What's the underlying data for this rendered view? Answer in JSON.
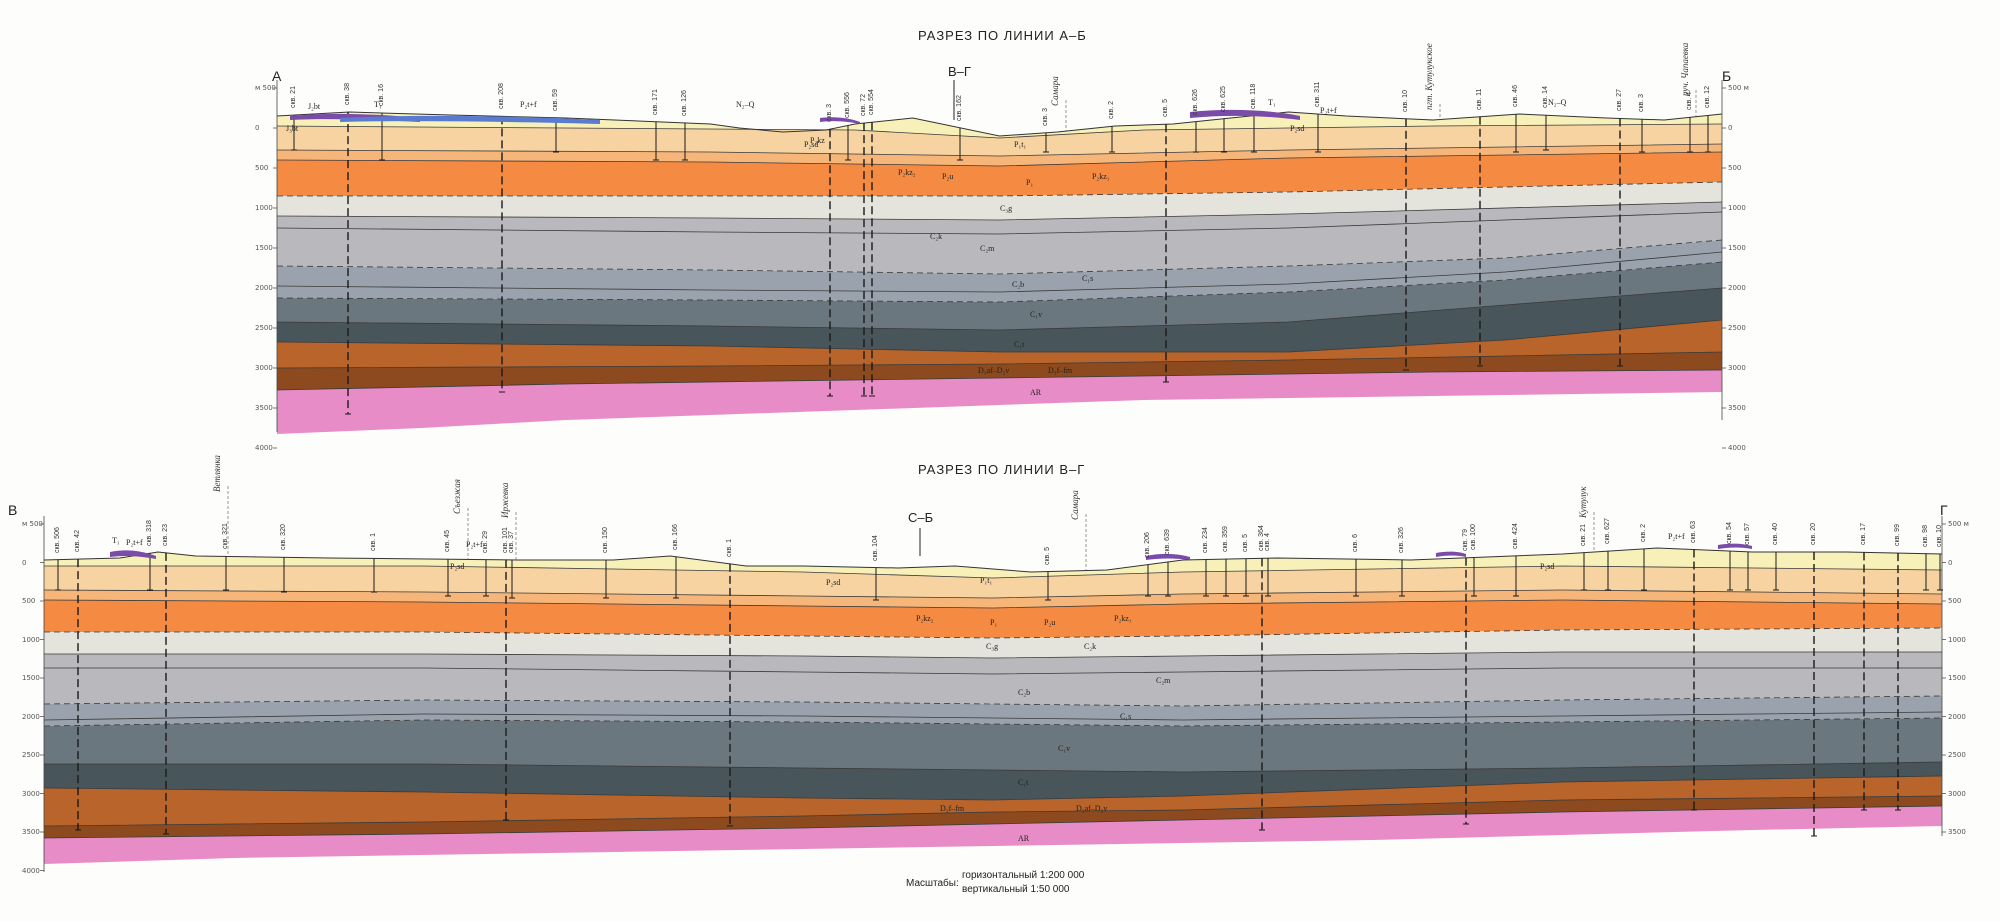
{
  "colors": {
    "quaternary": "#f7f0b8",
    "t1": "#7a4ba8",
    "p2_upper": "#f6d3a0",
    "p2_mid": "#f7b679",
    "p1": "#f58b42",
    "c3": "#e4e4dc",
    "c2": "#b9b9bd",
    "c2b": "#9aa3ad",
    "c1": "#6b777e",
    "c1s": "#48555b",
    "d3": "#b8642a",
    "d2": "#8c4a1e",
    "ar": "#e88cc8"
  },
  "section_ab": {
    "title": "РАЗРЕЗ ПО ЛИНИИ А–Б",
    "left_end": "А",
    "right_end": "Б",
    "cross_label": "В–Г",
    "depth_left": [
      "м 500",
      "0",
      "500",
      "1000",
      "1500",
      "2000",
      "2500",
      "3000",
      "3500",
      "4000"
    ],
    "depth_right": [
      "500 м",
      "0",
      "500",
      "1000",
      "1500",
      "2000",
      "2500",
      "3000",
      "3500",
      "4000"
    ],
    "wells": [
      "скв. 21",
      "скв. 38",
      "скв. 16",
      "скв. 208",
      "скв. 59",
      "скв. 171",
      "скв. 126",
      "скв. 3",
      "скв. 556",
      "скв. 72",
      "скв. 554",
      "скв. 162",
      "скв. 3",
      "скв. 2",
      "скв. 5",
      "скв. 626",
      "скв. 625",
      "скв. 118",
      "скв. 311",
      "скв. 10",
      "скв. 11",
      "скв. 46",
      "скв. 14",
      "скв. 27",
      "скв. 3",
      "скв. 4",
      "скв. 12"
    ],
    "rivers": [
      "Самара",
      "пгт. Кутулукское",
      "руч. Чапаевка"
    ],
    "strat_labels": [
      "J₃bt",
      "T₁",
      "P₂t+f",
      "N₂–Q",
      "J₂bt",
      "P₂kz",
      "P₂sd",
      "P₂kz₂",
      "P₂u",
      "P₁t₁",
      "P₁",
      "P₂kz₁",
      "P₂t+f",
      "P₂sd",
      "N₂–Q",
      "T₁",
      "C₃g",
      "C₂k",
      "C₂m",
      "C₂b",
      "C₁s",
      "C₁v",
      "C₁t",
      "D₃af–D₂v",
      "D₃f–fm",
      "AR"
    ]
  },
  "section_vg": {
    "title": "РАЗРЕЗ ПО ЛИНИИ В–Г",
    "left_end": "В",
    "right_end": "Г",
    "cross_label": "С–Б",
    "depth_left": [
      "м 500",
      "0",
      "500",
      "1000",
      "1500",
      "2000",
      "2500",
      "3000",
      "3500",
      "4000"
    ],
    "depth_right": [
      "500 м",
      "0",
      "500",
      "1000",
      "1500",
      "2000",
      "2500",
      "3000",
      "3500"
    ],
    "wells": [
      "скв. 506",
      "скв. 42",
      "скв. 318",
      "скв. 23",
      "скв. 321",
      "скв. 320",
      "скв. 1",
      "скв. 45",
      "скв. 29",
      "скв. 101",
      "скв. 37",
      "скв. 150",
      "скв. 166",
      "скв. 1",
      "скв. 104",
      "скв. 5",
      "скв. 206",
      "скв. 639",
      "скв. 234",
      "скв. 359",
      "скв. 5",
      "скв. 364",
      "скв. 4",
      "скв. 6",
      "скв. 326",
      "скв. 79",
      "скв. 100",
      "скв. 424",
      "скв. 21",
      "скв. 627",
      "скв. 2",
      "скв. 63",
      "скв. 54",
      "скв. 57",
      "скв. 40",
      "скв. 20",
      "скв. 17",
      "скв. 99",
      "скв. 98",
      "скв. 10"
    ],
    "rivers": [
      "Ветлянка",
      "Съезжая",
      "Иржевка",
      "Самара",
      "Кутулук"
    ],
    "strat_labels": [
      "T₁",
      "P₂t+f",
      "P₂sd",
      "P₂t+f",
      "P₂sd",
      "P₁t₁",
      "P₂kz₂",
      "P₁",
      "P₂u",
      "P₂kz₁",
      "P₂sd",
      "P₂t+f",
      "C₃g",
      "C₂k",
      "C₂m",
      "C₂b",
      "C₁s",
      "C₁v",
      "C₁t",
      "D₃f–fm",
      "D₃af–D₂v",
      "AR"
    ]
  },
  "scale": {
    "label": "Масштабы:",
    "horizontal": "горизонтальный 1:200 000",
    "vertical": "вертикальный 1:50 000"
  }
}
